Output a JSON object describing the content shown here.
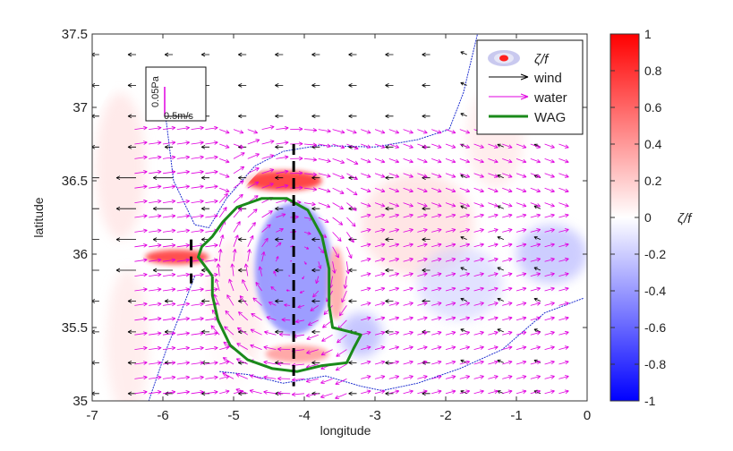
{
  "chart_data": {
    "type": "heatmap",
    "xlabel": "longitude",
    "ylabel": "latitude",
    "xlim": [
      -7,
      0
    ],
    "ylim": [
      35,
      37.5
    ],
    "xticks": [
      "-7",
      "-6",
      "-5",
      "-4",
      "-3",
      "-2",
      "-1",
      "0"
    ],
    "yticks": [
      "35",
      "35.5",
      "36",
      "36.5",
      "37",
      "37.5"
    ],
    "colorbar": {
      "label": "ζ/f",
      "range": [
        -1,
        1
      ],
      "ticks": [
        "1",
        "0.8",
        "0.6",
        "0.4",
        "0.2",
        "0",
        "-0.2",
        "-0.4",
        "-0.6",
        "-0.8",
        "-1"
      ],
      "colors": [
        "#0000ff",
        "#ffffff",
        "#ff0000"
      ]
    },
    "legend": {
      "placement": "top-right",
      "entries": [
        {
          "label": "ζ/f",
          "kind": "vorticity"
        },
        {
          "label": "wind",
          "kind": "arrow",
          "color": "#000000"
        },
        {
          "label": "water",
          "kind": "arrow",
          "color": "#e000e0"
        },
        {
          "label": "WAG",
          "kind": "line",
          "color": "#1a8a1a"
        }
      ]
    },
    "scale_box": {
      "stress_label": "0.05Pa",
      "speed_label": "0.5m/s"
    },
    "sections": [
      {
        "lon": -5.6,
        "lat": [
          35.8,
          36.1
        ]
      },
      {
        "lon": -4.15,
        "lat": [
          35.1,
          36.75
        ]
      }
    ],
    "wag_contour": [
      [
        -5.3,
        35.85
      ],
      [
        -5.5,
        35.98
      ],
      [
        -5.45,
        36.05
      ],
      [
        -5.3,
        36.12
      ],
      [
        -5.15,
        36.22
      ],
      [
        -4.95,
        36.32
      ],
      [
        -4.6,
        36.38
      ],
      [
        -4.25,
        36.38
      ],
      [
        -3.95,
        36.3
      ],
      [
        -3.75,
        36.12
      ],
      [
        -3.65,
        35.9
      ],
      [
        -3.65,
        35.65
      ],
      [
        -3.6,
        35.5
      ],
      [
        -3.35,
        35.47
      ],
      [
        -3.2,
        35.45
      ],
      [
        -3.3,
        35.36
      ],
      [
        -3.4,
        35.26
      ],
      [
        -3.75,
        35.24
      ],
      [
        -4.1,
        35.2
      ],
      [
        -4.45,
        35.22
      ],
      [
        -4.8,
        35.28
      ],
      [
        -5.05,
        35.38
      ],
      [
        -5.22,
        35.55
      ],
      [
        -5.3,
        35.72
      ],
      [
        -5.3,
        35.85
      ]
    ],
    "vorticity_features": [
      {
        "name": "central-anticyclone",
        "lon": -4.15,
        "lat": 35.9,
        "value": -0.45
      },
      {
        "name": "northern-rim",
        "lon": -4.3,
        "lat": 36.5,
        "value": 0.85
      },
      {
        "name": "strait-jet",
        "lon": -5.8,
        "lat": 35.98,
        "value": 0.8
      },
      {
        "name": "southern-rim",
        "lon": -4.1,
        "lat": 35.32,
        "value": 0.4
      },
      {
        "name": "eastern-front",
        "lon": -3.55,
        "lat": 35.8,
        "value": 0.35
      }
    ]
  }
}
